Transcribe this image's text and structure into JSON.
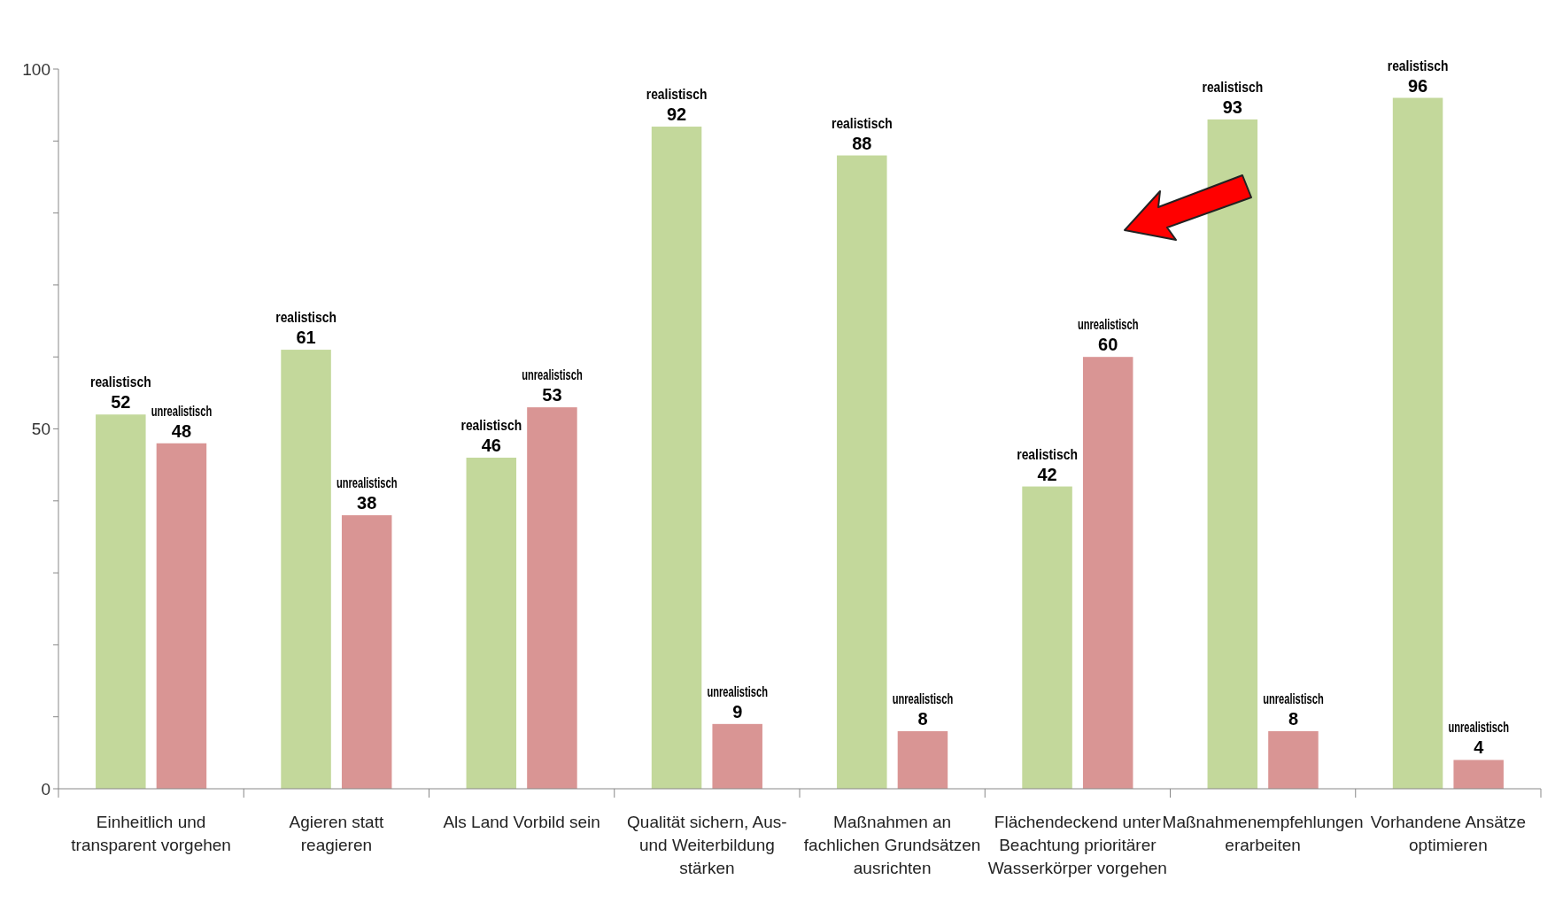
{
  "chart_data": {
    "type": "bar",
    "categories": [
      "Einheitlich und transparent vorgehen",
      "Agieren statt reagieren",
      "Als Land Vorbild sein",
      "Qualität sichern, Aus- und Weiterbildung stärken",
      "Maßnahmen an fachlichen Grundsätzen ausrichten",
      "Flächendeckend unter Beachtung prioritärer Wasserkörper vorgehen",
      "Maßnahmenempfehlungen erarbeiten",
      "Vorhandene Ansätze optimieren"
    ],
    "series": [
      {
        "name": "realistisch",
        "color": "#c3d89b",
        "values": [
          52,
          61,
          46,
          92,
          88,
          42,
          93,
          96
        ]
      },
      {
        "name": "unrealistisch",
        "color": "#d99594",
        "values": [
          48,
          38,
          53,
          9,
          8,
          60,
          8,
          4
        ]
      }
    ],
    "ylim": [
      0,
      100
    ],
    "yticks": [
      0,
      {
        "value": 10,
        "label": null
      },
      {
        "value": 20,
        "label": null
      },
      {
        "value": 30,
        "label": null
      },
      {
        "value": 40,
        "label": null
      },
      50,
      {
        "value": 60,
        "label": null
      },
      {
        "value": 70,
        "label": null
      },
      {
        "value": 80,
        "label": null
      },
      {
        "value": 90,
        "label": null
      },
      100
    ],
    "data_labels": true,
    "grid": false,
    "legend": false
  }
}
